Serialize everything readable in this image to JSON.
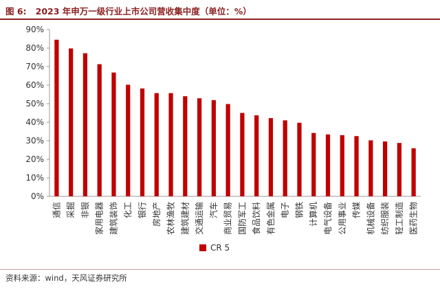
{
  "figure": {
    "label": "图 6:",
    "title": "2023 年申万一级行业上市公司营收集中度（单位：%）"
  },
  "source": "资料来源：wind，天风证券研究所",
  "colors": {
    "bar": "#c00000",
    "title": "#8b1e1e",
    "axis": "#999999"
  },
  "chart_data": {
    "type": "bar",
    "title": "2023 年申万一级行业上市公司营收集中度（单位：%）",
    "xlabel": "",
    "ylabel": "",
    "ylim": [
      0,
      90
    ],
    "ytick_step": 10,
    "ytick_format": "%",
    "grid": false,
    "legend_position": "bottom-center",
    "categories": [
      "通信",
      "采掘",
      "非银",
      "家用电器",
      "建筑装饰",
      "化工",
      "银行",
      "房地产",
      "农林渔牧",
      "建筑建材",
      "交通运输",
      "汽车",
      "商业贸易",
      "国防军工",
      "食品饮料",
      "有色金属",
      "电子",
      "钢铁",
      "计算机",
      "电气设备",
      "公用事业",
      "传媒",
      "机械设备",
      "纺织服装",
      "轻工制造",
      "医药生物"
    ],
    "series": [
      {
        "name": "CR 5",
        "values": [
          84.5,
          79.8,
          77.2,
          71.3,
          66.8,
          60.2,
          58.2,
          55.7,
          55.7,
          54.0,
          52.9,
          51.9,
          49.8,
          45.0,
          43.7,
          42.2,
          41.0,
          39.7,
          34.2,
          33.4,
          33.0,
          32.5,
          30.2,
          29.6,
          28.8,
          25.9
        ]
      }
    ]
  }
}
